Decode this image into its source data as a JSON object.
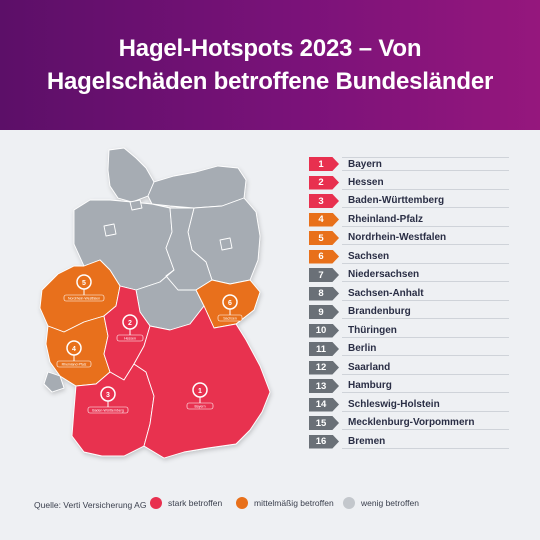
{
  "header": {
    "title_line1": "Hagel-Hotspots 2023 – Von",
    "title_line2": "Hagelschäden betroffene Bundesländer"
  },
  "colors": {
    "header_start": "#5c0f68",
    "header_end": "#95177d",
    "strong": "#e8304f",
    "medium": "#e8701a",
    "weak": "#a6acb3",
    "weak_tag": "#6a7077",
    "background": "#eef0f3"
  },
  "ranking": [
    {
      "rank": "1",
      "state": "Bayern",
      "level": "strong"
    },
    {
      "rank": "2",
      "state": "Hessen",
      "level": "strong"
    },
    {
      "rank": "3",
      "state": "Baden-Württemberg",
      "level": "strong"
    },
    {
      "rank": "4",
      "state": "Rheinland-Pfalz",
      "level": "medium"
    },
    {
      "rank": "5",
      "state": "Nordrhein-Westfalen",
      "level": "medium"
    },
    {
      "rank": "6",
      "state": "Sachsen",
      "level": "medium"
    },
    {
      "rank": "7",
      "state": "Niedersachsen",
      "level": "weak"
    },
    {
      "rank": "8",
      "state": "Sachsen-Anhalt",
      "level": "weak"
    },
    {
      "rank": "9",
      "state": "Brandenburg",
      "level": "weak"
    },
    {
      "rank": "10",
      "state": "Thüringen",
      "level": "weak"
    },
    {
      "rank": "11",
      "state": "Berlin",
      "level": "weak"
    },
    {
      "rank": "12",
      "state": "Saarland",
      "level": "weak"
    },
    {
      "rank": "13",
      "state": "Hamburg",
      "level": "weak"
    },
    {
      "rank": "14",
      "state": "Schleswig-Holstein",
      "level": "weak"
    },
    {
      "rank": "15",
      "state": "Mecklenburg-Vorpommern",
      "level": "weak"
    },
    {
      "rank": "16",
      "state": "Bremen",
      "level": "weak"
    }
  ],
  "map": {
    "pins": [
      {
        "rank": "1",
        "label": "Bayern"
      },
      {
        "rank": "2",
        "label": "Hessen"
      },
      {
        "rank": "3",
        "label": "Baden-Württemberg"
      },
      {
        "rank": "4",
        "label": "Rheinland-Pfalz"
      },
      {
        "rank": "5",
        "label": "Nordrhein-Westfalen"
      },
      {
        "rank": "6",
        "label": "Sachsen"
      }
    ]
  },
  "footer": {
    "source": "Quelle: Verti Versicherung AG",
    "legend": [
      {
        "label": "stark betroffen",
        "level": "strong"
      },
      {
        "label": "mittelmäßig betroffen",
        "level": "medium"
      },
      {
        "label": "wenig betroffen",
        "level": "weak"
      }
    ]
  }
}
